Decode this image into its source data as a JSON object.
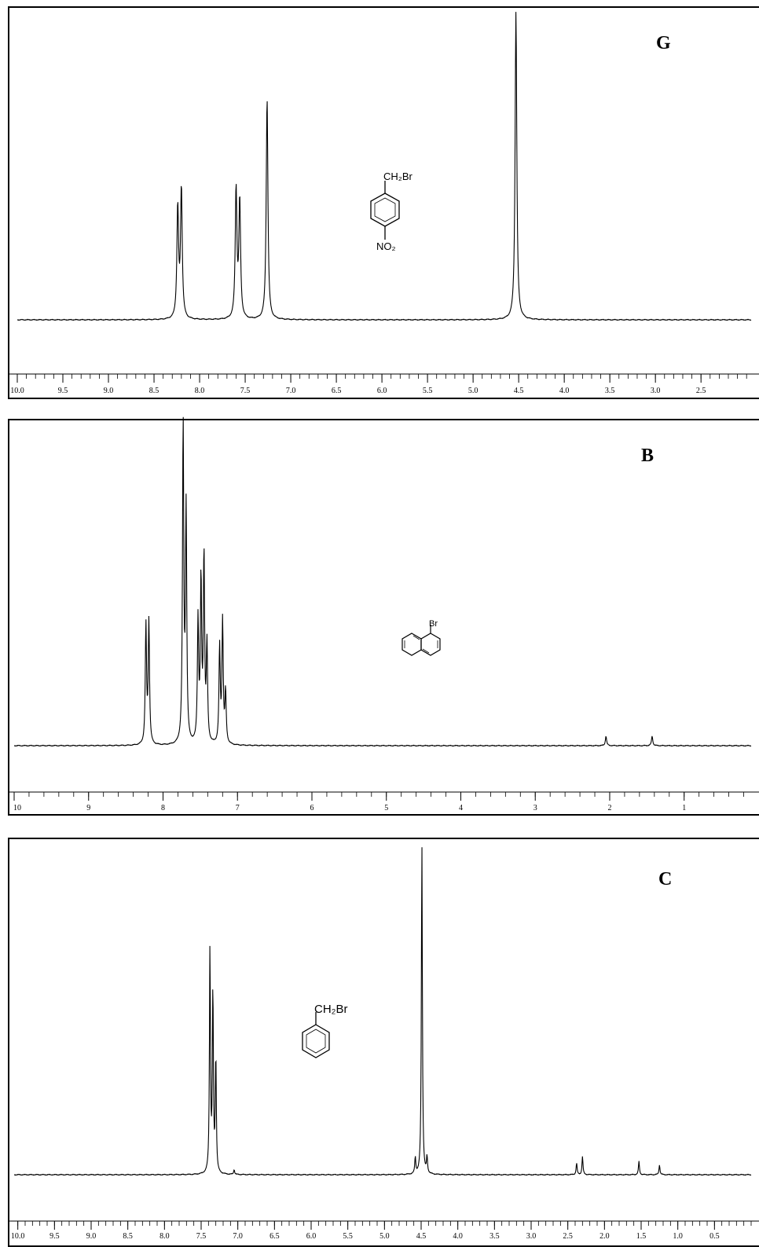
{
  "chart_data": [
    {
      "type": "line",
      "panel_label": "G",
      "structure": {
        "name": "4-nitrobenzyl bromide",
        "substituent_top": "CH₂Br",
        "substituent_bottom": "NO₂"
      },
      "xlim": [
        10.0,
        1.95
      ],
      "x_reversed": true,
      "xtick_labels": [
        "10.0",
        "9.5",
        "9.0",
        "8.5",
        "8.0",
        "7.5",
        "7.0",
        "6.5",
        "6.0",
        "5.5",
        "5.0",
        "4.5",
        "4.0",
        "3.5",
        "3.0",
        "2.5"
      ],
      "xtick_values": [
        10.0,
        9.5,
        9.0,
        8.5,
        8.0,
        7.5,
        7.0,
        6.5,
        6.0,
        5.5,
        5.0,
        4.5,
        4.0,
        3.5,
        3.0,
        2.5
      ],
      "minor_tick_step": 0.1,
      "peaks": [
        {
          "ppm": 8.24,
          "rel_height": 0.36
        },
        {
          "ppm": 8.2,
          "rel_height": 0.42
        },
        {
          "ppm": 7.6,
          "rel_height": 0.42
        },
        {
          "ppm": 7.56,
          "rel_height": 0.38
        },
        {
          "ppm": 7.26,
          "rel_height": 0.72
        },
        {
          "ppm": 4.53,
          "rel_height": 1.0
        }
      ]
    },
    {
      "type": "line",
      "panel_label": "B",
      "structure": {
        "name": "1-bromonaphthalene",
        "substituent_top": "Br"
      },
      "xlim": [
        10.0,
        0.1
      ],
      "x_reversed": true,
      "xtick_labels": [
        "10",
        "9",
        "8",
        "7",
        "6",
        "5",
        "4",
        "3",
        "2",
        "1"
      ],
      "xtick_values": [
        10,
        9,
        8,
        7,
        6,
        5,
        4,
        3,
        2,
        1
      ],
      "minor_tick_step": 0.2,
      "peaks": [
        {
          "ppm": 8.23,
          "rel_height": 0.37
        },
        {
          "ppm": 8.19,
          "rel_height": 0.38
        },
        {
          "ppm": 7.73,
          "rel_height": 1.0
        },
        {
          "ppm": 7.69,
          "rel_height": 0.72
        },
        {
          "ppm": 7.53,
          "rel_height": 0.38
        },
        {
          "ppm": 7.49,
          "rel_height": 0.5
        },
        {
          "ppm": 7.45,
          "rel_height": 0.58
        },
        {
          "ppm": 7.41,
          "rel_height": 0.3
        },
        {
          "ppm": 7.24,
          "rel_height": 0.3
        },
        {
          "ppm": 7.2,
          "rel_height": 0.38
        },
        {
          "ppm": 7.16,
          "rel_height": 0.16
        },
        {
          "ppm": 2.05,
          "rel_height": 0.03
        },
        {
          "ppm": 1.43,
          "rel_height": 0.03
        }
      ]
    },
    {
      "type": "line",
      "panel_label": "C",
      "structure": {
        "name": "benzyl bromide",
        "substituent_top": "CH₂Br"
      },
      "xlim": [
        10.05,
        0.0
      ],
      "x_reversed": true,
      "xtick_labels": [
        "10.0",
        "9.5",
        "9.0",
        "8.5",
        "8.0",
        "7.5",
        "7.0",
        "6.5",
        "6.0",
        "5.5",
        "5.0",
        "4.5",
        "4.0",
        "3.5",
        "3.0",
        "2.5",
        "2.0",
        "1.5",
        "1.0",
        "0.5"
      ],
      "xtick_values": [
        10.0,
        9.5,
        9.0,
        8.5,
        8.0,
        7.5,
        7.0,
        6.5,
        6.0,
        5.5,
        5.0,
        4.5,
        4.0,
        3.5,
        3.0,
        2.5,
        2.0,
        1.5,
        1.0,
        0.5
      ],
      "minor_tick_step": 0.1,
      "peaks": [
        {
          "ppm": 7.38,
          "rel_height": 0.68
        },
        {
          "ppm": 7.34,
          "rel_height": 0.55
        },
        {
          "ppm": 7.3,
          "rel_height": 0.35
        },
        {
          "ppm": 7.05,
          "rel_height": 0.015
        },
        {
          "ppm": 4.58,
          "rel_height": 0.05
        },
        {
          "ppm": 4.49,
          "rel_height": 1.0
        },
        {
          "ppm": 4.42,
          "rel_height": 0.05
        },
        {
          "ppm": 2.38,
          "rel_height": 0.035
        },
        {
          "ppm": 2.3,
          "rel_height": 0.055
        },
        {
          "ppm": 1.53,
          "rel_height": 0.04
        },
        {
          "ppm": 1.25,
          "rel_height": 0.03
        }
      ]
    }
  ]
}
